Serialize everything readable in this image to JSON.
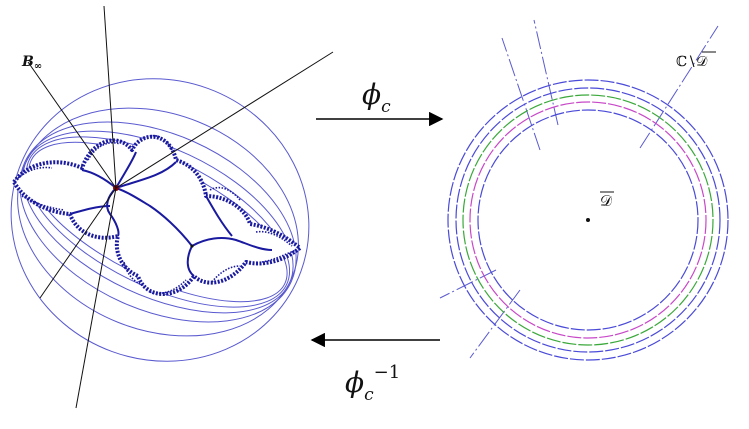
{
  "labels": {
    "basin": "B",
    "basin_sub": "∞",
    "forward_map": "ϕ",
    "forward_sub": "c",
    "inverse_map": "ϕ",
    "inverse_sub": "c",
    "inverse_sup": "−1",
    "complement": "ℂ∖",
    "complement_disk": "𝒟",
    "disk": "𝒟"
  },
  "colors": {
    "julia": "#1a1aa0",
    "level_curves": "#5a5ad0",
    "rays": "#111111",
    "alpha_point": "#8b0000",
    "circle_blue": "#4a4ad8",
    "circle_green": "#3aa83a",
    "circle_magenta": "#c848c8",
    "arrow": "#000000"
  }
}
